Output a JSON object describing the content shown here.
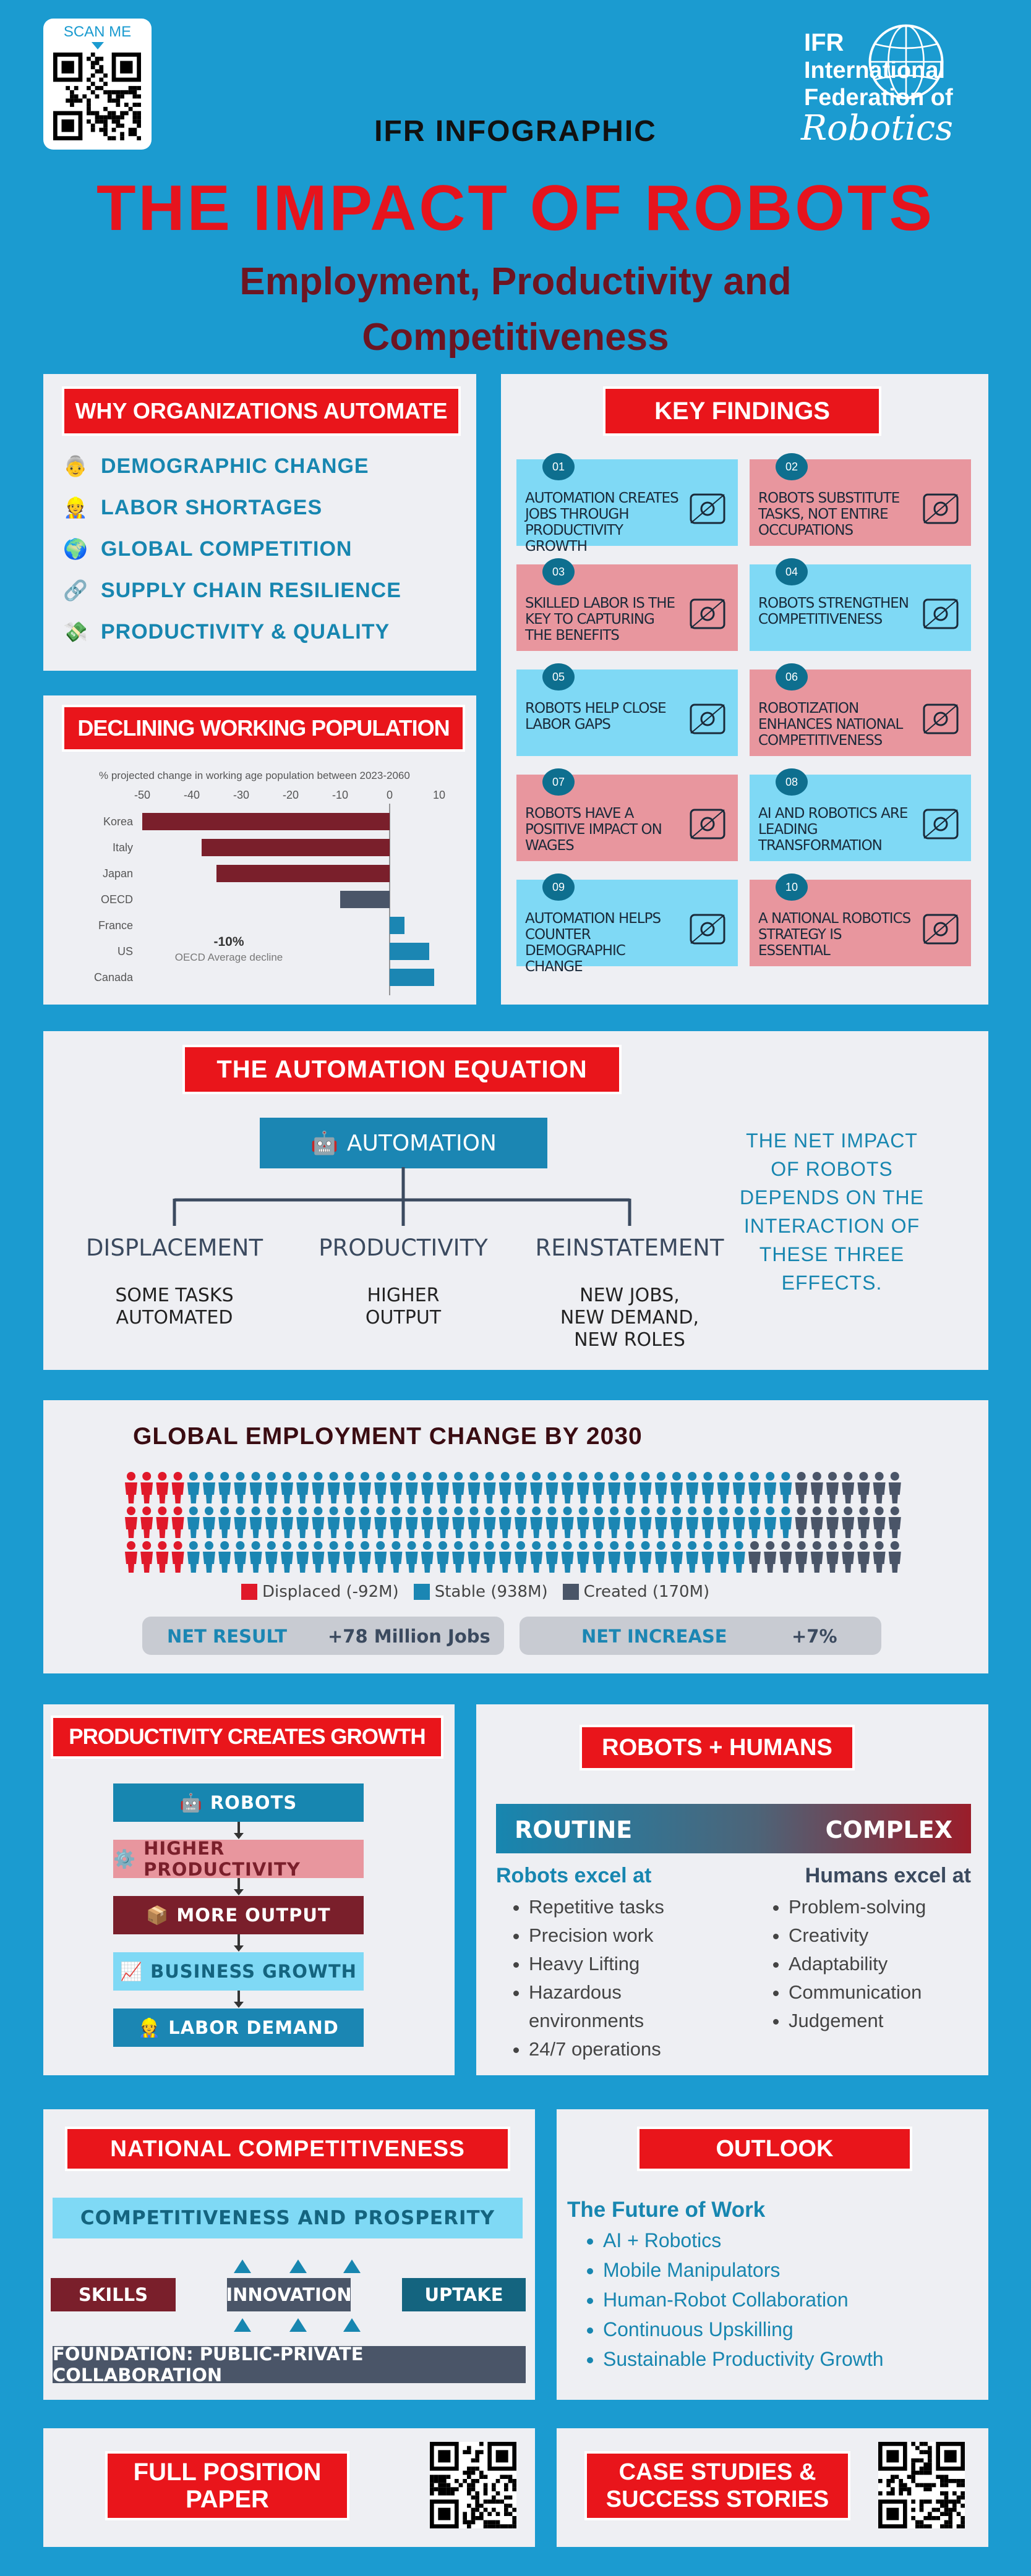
{
  "header": {
    "scan_label": "SCAN ME",
    "infographic_label": "IFR INFOGRAPHIC",
    "title": "THE IMPACT OF ROBOTS",
    "subtitle_line1": "Employment, Productivity and",
    "subtitle_line2": "Competitiveness",
    "logo_line1": "IFR",
    "logo_line2": "International",
    "logo_line3": "Federation of",
    "logo_line4": "Robotics"
  },
  "why": {
    "heading": "WHY ORGANIZATIONS AUTOMATE",
    "items": [
      {
        "icon": "elder-person-icon",
        "label": "DEMOGRAPHIC CHANGE"
      },
      {
        "icon": "worker-icon",
        "label": "LABOR SHORTAGES"
      },
      {
        "icon": "globe-icon",
        "label": "GLOBAL COMPETITION"
      },
      {
        "icon": "link-icon",
        "label": "SUPPLY CHAIN RESILIENCE"
      },
      {
        "icon": "money-icon",
        "label": "PRODUCTIVITY & QUALITY"
      }
    ]
  },
  "declining": {
    "heading": "DECLINING WORKING POPULATION",
    "chart_data": {
      "type": "bar",
      "title": "% projected change in working age population between 2023-2060",
      "orientation": "horizontal",
      "categories": [
        "Korea",
        "Italy",
        "Japan",
        "OECD",
        "France",
        "US",
        "Canada"
      ],
      "values": [
        -50,
        -38,
        -35,
        -10,
        3,
        8,
        9
      ],
      "xlim": [
        -50,
        10
      ],
      "xticks": [
        "-50",
        "-40",
        "-30",
        "-20",
        "-10",
        "0",
        "10"
      ],
      "annotation_value": "-10%",
      "annotation_text": "OECD Average decline",
      "colors": {
        "negative": "#7a1f2b",
        "oecd": "#4a5568",
        "positive": "#1b86b3"
      }
    }
  },
  "findings": {
    "heading": "KEY FINDINGS",
    "items": [
      {
        "num": "01",
        "text": "AUTOMATION CREATES JOBS THROUGH PRODUCTIVITY GROWTH",
        "color": "blue",
        "icon": "growth-chart-icon"
      },
      {
        "num": "02",
        "text": "ROBOTS SUBSTITUTE TASKS, NOT ENTIRE OCCUPATIONS",
        "color": "pink",
        "icon": "robot-icon"
      },
      {
        "num": "03",
        "text": "SKILLED LABOR IS THE KEY TO CAPTURING THE BENEFITS",
        "color": "pink",
        "icon": "brain-gear-icon"
      },
      {
        "num": "04",
        "text": "ROBOTS STRENGTHEN COMPETITIVENESS",
        "color": "blue",
        "icon": "handshake-icon"
      },
      {
        "num": "05",
        "text": "ROBOTS HELP CLOSE LABOR GAPS",
        "color": "blue",
        "icon": "team-icon"
      },
      {
        "num": "06",
        "text": "ROBOTIZATION ENHANCES NATIONAL COMPETITIVENESS",
        "color": "pink",
        "icon": "globe-gear-icon"
      },
      {
        "num": "07",
        "text": "ROBOTS HAVE A POSITIVE IMPACT ON WAGES",
        "color": "pink",
        "icon": "cash-hand-icon"
      },
      {
        "num": "08",
        "text": "AI AND ROBOTICS ARE LEADING TRANSFORMATION",
        "color": "blue",
        "icon": "ai-gear-icon"
      },
      {
        "num": "09",
        "text": "AUTOMATION HELPS COUNTER DEMOGRAPHIC CHANGE",
        "color": "blue",
        "icon": "building-icon"
      },
      {
        "num": "10",
        "text": "A NATIONAL ROBOTICS STRATEGY IS ESSENTIAL",
        "color": "pink",
        "icon": "strategy-board-icon"
      }
    ]
  },
  "equation": {
    "heading": "THE AUTOMATION EQUATION",
    "root_label": "AUTOMATION",
    "branches": [
      {
        "title": "DISPLACEMENT",
        "line1": "SOME TASKS",
        "line2": "AUTOMATED",
        "line3": ""
      },
      {
        "title": "PRODUCTIVITY",
        "line1": "HIGHER",
        "line2": "OUTPUT",
        "line3": ""
      },
      {
        "title": "REINSTATEMENT",
        "line1": "NEW JOBS,",
        "line2": "NEW DEMAND,",
        "line3": "NEW ROLES"
      }
    ],
    "note_lines": [
      "THE NET IMPACT",
      "OF ROBOTS",
      "DEPENDS ON THE",
      "INTERACTION OF",
      "THESE THREE",
      "EFFECTS."
    ]
  },
  "employment": {
    "heading": "GLOBAL EMPLOYMENT CHANGE BY 2030",
    "legend": [
      {
        "label": "Displaced (-92M)",
        "color": "#e0192a"
      },
      {
        "label": "Stable (938M)",
        "color": "#1b86b3"
      },
      {
        "label": "Created (170M)",
        "color": "#4a5568"
      }
    ],
    "net_result_label": "NET RESULT",
    "net_result_value": "+78 Million Jobs",
    "net_increase_label": "NET INCREASE",
    "net_increase_value": "+7%"
  },
  "productivity": {
    "heading": "PRODUCTIVITY CREATES GROWTH",
    "steps": [
      {
        "label": "ROBOTS",
        "icon": "robot-icon"
      },
      {
        "label": "HIGHER PRODUCTIVITY",
        "icon": "gear-icon"
      },
      {
        "label": "MORE OUTPUT",
        "icon": "box-icon"
      },
      {
        "label": "BUSINESS GROWTH",
        "icon": "chart-icon"
      },
      {
        "label": "LABOR DEMAND",
        "icon": "worker-icon"
      }
    ]
  },
  "robots_humans": {
    "heading": "ROBOTS + HUMANS",
    "routine": "ROUTINE",
    "complex": "COMPLEX",
    "robots_title": "Robots excel at",
    "humans_title": "Humans excel at",
    "robots_items": [
      "Repetitive tasks",
      "Precision work",
      "Heavy Lifting",
      "Hazardous environments",
      "24/7 operations"
    ],
    "humans_items": [
      "Problem-solving",
      "Creativity",
      "Adaptability",
      "Communication",
      "Judgement"
    ]
  },
  "competitiveness": {
    "heading": "NATIONAL COMPETITIVENESS",
    "top": "COMPETITIVENESS AND PROSPERITY",
    "skills": "SKILLS",
    "innovation": "INNOVATION",
    "uptake": "UPTAKE",
    "foundation": "FOUNDATION: PUBLIC-PRIVATE COLLABORATION"
  },
  "outlook": {
    "heading": "OUTLOOK",
    "title": "The Future of Work",
    "items": [
      "AI + Robotics",
      "Mobile Manipulators",
      "Human-Robot Collaboration",
      "Continuous Upskilling",
      "Sustainable Productivity Growth"
    ]
  },
  "footer": {
    "paper_line1": "FULL POSITION",
    "paper_line2": "PAPER",
    "cases_line1": "CASE STUDIES &",
    "cases_line2": "SUCCESS STORIES"
  }
}
